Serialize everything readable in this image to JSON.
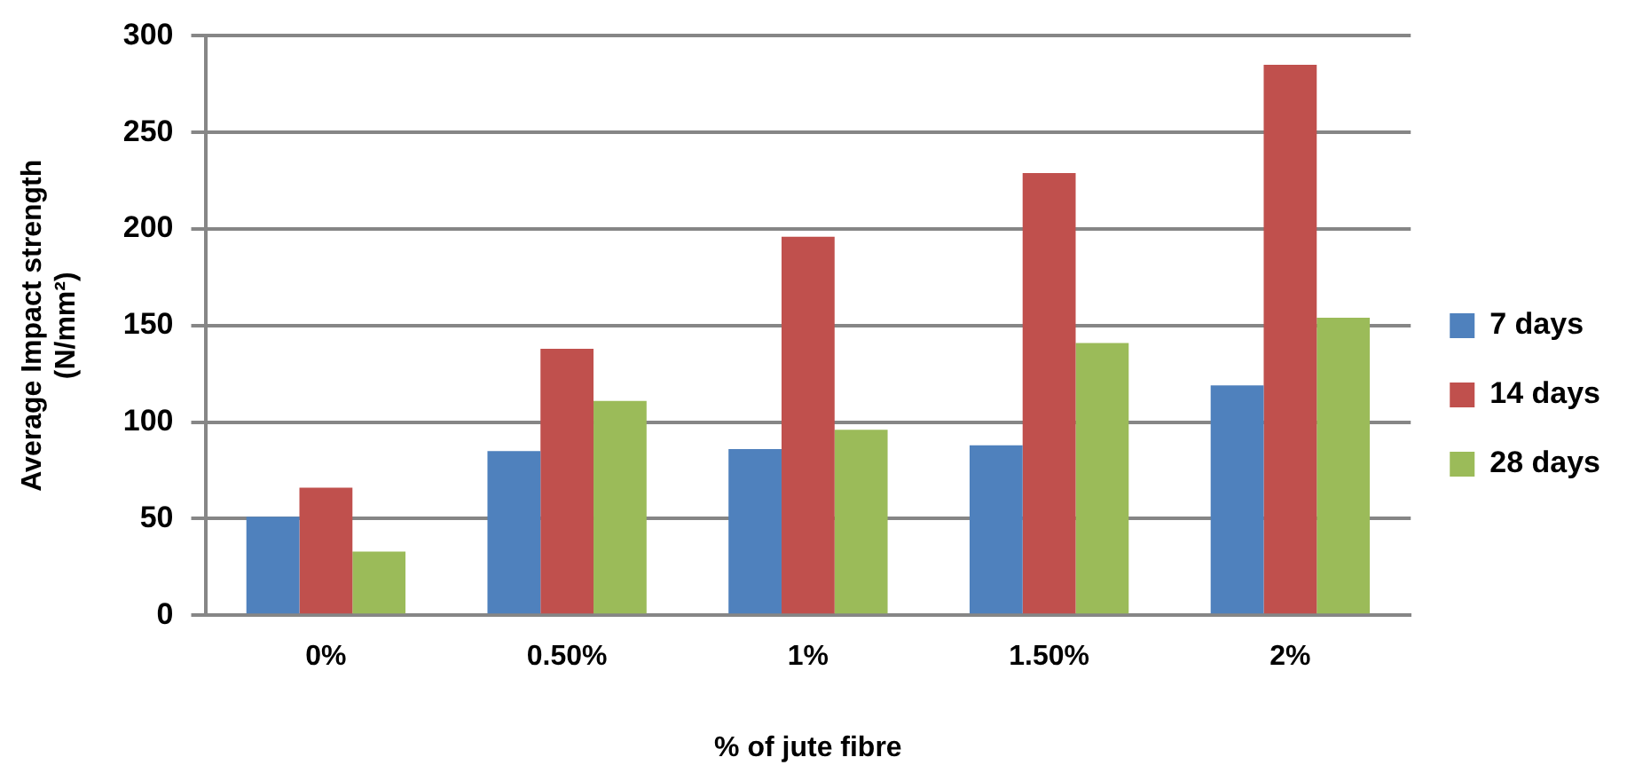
{
  "chart_data": {
    "type": "bar",
    "xlabel": "% of jute fibre",
    "ylabel": "Average Impact strength (N/mm²)",
    "categories": [
      "0%",
      "0.50%",
      "1%",
      "1.50%",
      "2%"
    ],
    "series": [
      {
        "name": "7 days",
        "color": "#4f81bd",
        "values": [
          51,
          85,
          86,
          88,
          119
        ]
      },
      {
        "name": "14 days",
        "color": "#c0504d",
        "values": [
          66,
          138,
          196,
          229,
          285
        ]
      },
      {
        "name": "28 days",
        "color": "#9bbb59",
        "values": [
          33,
          111,
          96,
          141,
          154
        ]
      }
    ],
    "ylim": [
      0,
      300
    ],
    "yticks": [
      0,
      50,
      100,
      150,
      200,
      250,
      300
    ],
    "grid": "y",
    "legend": "right"
  }
}
